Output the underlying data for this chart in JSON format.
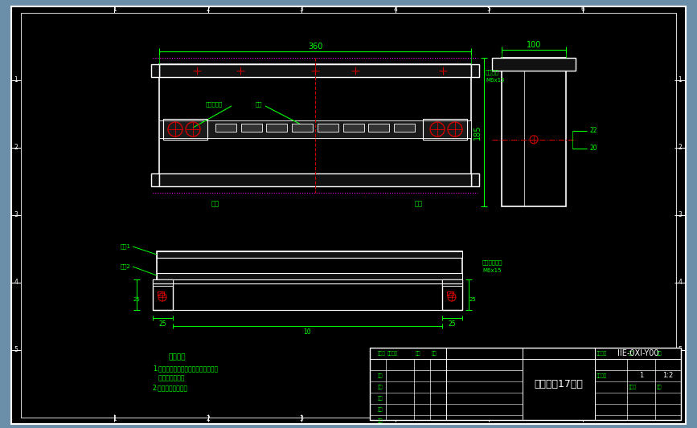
{
  "bg_outer": "#6b8fa8",
  "bg_inner": "#000000",
  "border_color": "#ffffff",
  "green_color": "#00ff00",
  "red_color": "#cc0000",
  "magenta_color": "#ff00ff",
  "title": "户内箱（17位）",
  "drawing_num": "IIE-0XI-Y00",
  "scale": "1:2",
  "notes_title": "技术要求",
  "notes": [
    "1.零地排支架及接地螺柱应焊接牢靠，",
    "   焊后清渣再底。",
    "2.铁架件电镀处理。"
  ],
  "dim_360": "360",
  "dim_100": "100",
  "dim_185": "185",
  "dim_22": "22",
  "dim_20": "20",
  "label_front": "前板",
  "label_back": "后板",
  "label_bracket1": "支架1",
  "label_bracket2": "支架2",
  "label_zero_bracket": "支架支撑螺柱",
  "label_zero_spec": "M6x15",
  "label_grounding": "接地螺柱",
  "label_ground_spec": "M6x15",
  "label_zero_rail": "零地排支支",
  "label_bus_bar": "铜排",
  "dim_25_left": "25",
  "dim_25_right": "25",
  "dim_10": "10"
}
